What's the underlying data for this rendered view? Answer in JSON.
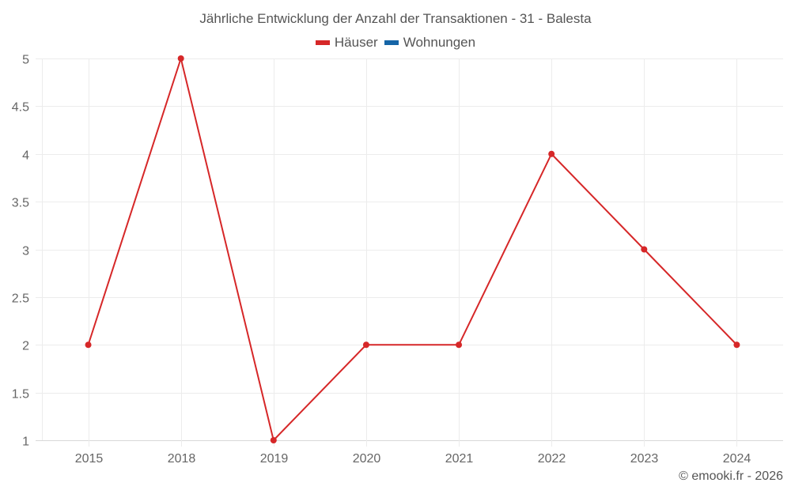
{
  "title": "Jährliche Entwicklung der Anzahl der Transaktionen - 31 - Balesta",
  "legend": [
    {
      "label": "Häuser",
      "color": "#d62728"
    },
    {
      "label": "Wohnungen",
      "color": "#1565a7"
    }
  ],
  "credit": "© emooki.fr - 2026",
  "chart_data": {
    "type": "line",
    "title": "Jährliche Entwicklung der Anzahl der Transaktionen - 31 - Balesta",
    "categories": [
      "2015",
      "2018",
      "2019",
      "2020",
      "2021",
      "2022",
      "2023",
      "2024"
    ],
    "series": [
      {
        "name": "Häuser",
        "color": "#d62728",
        "values": [
          2,
          5,
          1,
          2,
          2,
          4,
          3,
          2
        ]
      },
      {
        "name": "Wohnungen",
        "color": "#1565a7",
        "values": []
      }
    ],
    "xlabel": "",
    "ylabel": "",
    "ylim": [
      1,
      5
    ],
    "yticks": [
      "1",
      "1.5",
      "2",
      "2.5",
      "3",
      "3.5",
      "4",
      "4.5",
      "5"
    ],
    "grid": true,
    "legend_position": "top"
  }
}
